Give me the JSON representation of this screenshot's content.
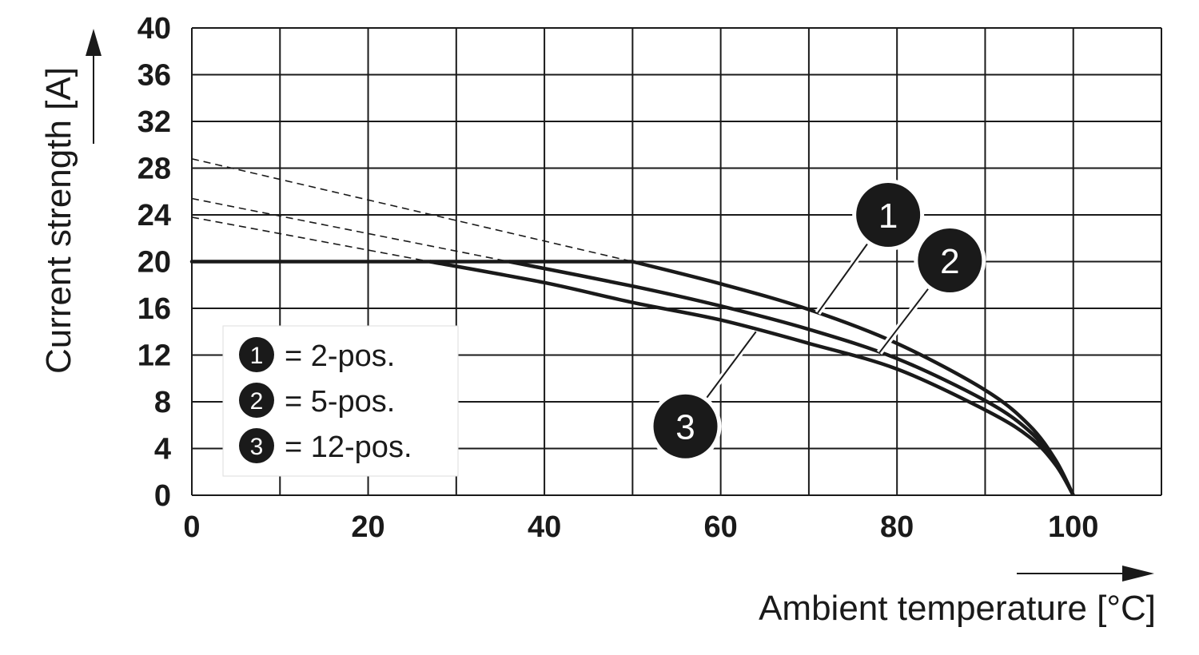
{
  "chart_data": {
    "type": "line",
    "xlabel": "Ambient temperature [°C]",
    "ylabel": "Current strength [A]",
    "xlim": [
      0,
      110
    ],
    "ylim": [
      0,
      40
    ],
    "x_ticks": [
      0,
      20,
      40,
      60,
      80,
      100
    ],
    "y_ticks": [
      0,
      4,
      8,
      12,
      16,
      20,
      24,
      28,
      32,
      36,
      40
    ],
    "x_tick_labels": [
      "0",
      "20",
      "40",
      "60",
      "80",
      "100"
    ],
    "y_tick_labels": [
      "0",
      "4",
      "8",
      "12",
      "16",
      "20",
      "24",
      "28",
      "32",
      "36",
      "40"
    ],
    "grid": true,
    "legend": {
      "position": "bottom-left",
      "entries": [
        {
          "marker": "1",
          "label": "= 2-pos."
        },
        {
          "marker": "2",
          "label": "= 5-pos."
        },
        {
          "marker": "3",
          "label": "= 12-pos."
        }
      ]
    },
    "limit_line": {
      "style": "solid",
      "points": [
        [
          0,
          20
        ],
        [
          50,
          20
        ]
      ]
    },
    "series": [
      {
        "marker": "1",
        "style": "solid",
        "points": [
          [
            50,
            20
          ],
          [
            60,
            18.1
          ],
          [
            70,
            15.9
          ],
          [
            80,
            13.0
          ],
          [
            90,
            9.0
          ],
          [
            95,
            6.0
          ],
          [
            98,
            3.0
          ],
          [
            100,
            0
          ]
        ],
        "extrapolation": {
          "style": "dashed",
          "points": [
            [
              0,
              28.8
            ],
            [
              50,
              20
            ]
          ]
        }
      },
      {
        "marker": "2",
        "style": "solid",
        "points": [
          [
            36,
            20
          ],
          [
            50,
            17.9
          ],
          [
            60,
            16.2
          ],
          [
            70,
            14.2
          ],
          [
            80,
            11.7
          ],
          [
            90,
            8.1
          ],
          [
            95,
            5.5
          ],
          [
            98,
            2.8
          ],
          [
            100,
            0
          ]
        ],
        "extrapolation": {
          "style": "dashed",
          "points": [
            [
              0,
              25.4
            ],
            [
              36,
              20
            ]
          ]
        }
      },
      {
        "marker": "3",
        "style": "solid",
        "points": [
          [
            27,
            20
          ],
          [
            40,
            18.2
          ],
          [
            50,
            16.5
          ],
          [
            60,
            15.0
          ],
          [
            70,
            13.0
          ],
          [
            80,
            10.8
          ],
          [
            90,
            7.3
          ],
          [
            95,
            5.0
          ],
          [
            98,
            2.6
          ],
          [
            100,
            0
          ]
        ],
        "extrapolation": {
          "style": "dashed",
          "points": [
            [
              0,
              23.8
            ],
            [
              27,
              20
            ]
          ]
        }
      }
    ],
    "callouts": [
      {
        "marker": "1",
        "at": [
          71,
          15.6
        ],
        "bubble": [
          79,
          24
        ]
      },
      {
        "marker": "2",
        "at": [
          78,
          12.2
        ],
        "bubble": [
          86,
          20.1
        ]
      },
      {
        "marker": "3",
        "at": [
          64,
          14.0
        ],
        "bubble": [
          56,
          5.9
        ]
      }
    ]
  }
}
